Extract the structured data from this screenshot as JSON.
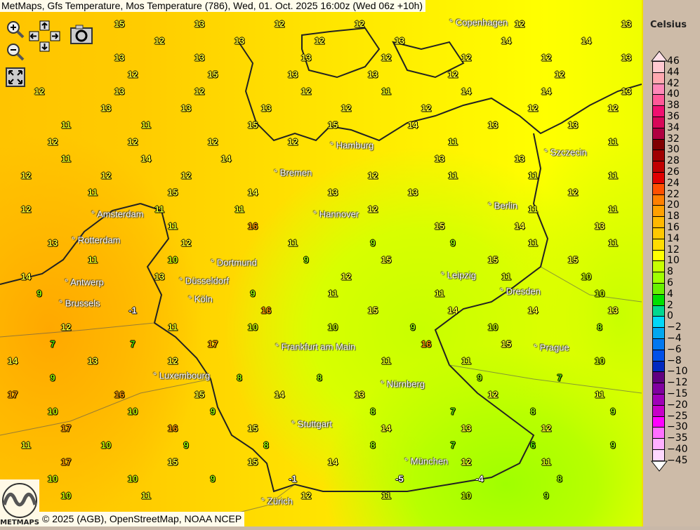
{
  "title": "MetMaps, Gfs Temperature, Mos Temperature (786), Wed, 01. Oct. 2025 16:00z (Wed 06z +10h)",
  "controls": {
    "zoom_in": "zoom-in-icon",
    "zoom_out": "zoom-out-icon",
    "pan": "pan-arrows-icon",
    "snapshot": "camera-icon",
    "fullscreen": "fullscreen-icon"
  },
  "legend": {
    "title": "Celsius",
    "labels": [
      "46",
      "44",
      "42",
      "40",
      "38",
      "36",
      "34",
      "32",
      "30",
      "28",
      "26",
      "24",
      "22",
      "20",
      "18",
      "16",
      "14",
      "12",
      "10",
      "8",
      "6",
      "4",
      "2",
      "0",
      "−2",
      "−4",
      "−6",
      "−8",
      "−10",
      "−12",
      "−15",
      "−20",
      "−25",
      "−30",
      "−35",
      "−40",
      "−45"
    ],
    "colors": [
      "#ffc8d0",
      "#ffa8b0",
      "#ff88b8",
      "#ff5898",
      "#f01070",
      "#d80858",
      "#b00040",
      "#800000",
      "#a00000",
      "#c00000",
      "#e00000",
      "#ff5000",
      "#ff8000",
      "#ffa000",
      "#ffb800",
      "#ffc800",
      "#ffdc00",
      "#ffff00",
      "#c8ff00",
      "#a0ff00",
      "#68f000",
      "#00e000",
      "#00d890",
      "#00d8f8",
      "#00a8f0",
      "#0078f0",
      "#0050e8",
      "#0028c0",
      "#600080",
      "#8000a0",
      "#a000b8",
      "#c800c8",
      "#ff00ff",
      "#ff70ff",
      "#ffb0ff",
      "#ffd8ff"
    ]
  },
  "cities": [
    "Copenhagen",
    "Hamburg",
    "Bremen",
    "Szczecin",
    "Amsterdam",
    "Rotterdam",
    "Berlin",
    "Hannover",
    "Dortmund",
    "Düsseldorf",
    "Köln",
    "Antwerp",
    "Brussels",
    "Leipzig",
    "Dresden",
    "Prague",
    "Frankfurt am Main",
    "Luxembourg",
    "Nürnberg",
    "Stuttgart",
    "München",
    "Zürich"
  ],
  "stations": [
    15,
    13,
    12,
    12,
    12,
    13,
    12,
    13,
    12,
    13,
    14,
    14,
    13,
    13,
    13,
    12,
    12,
    12,
    13,
    12,
    15,
    13,
    13,
    12,
    12,
    12,
    13,
    12,
    12,
    11,
    14,
    14,
    13,
    13,
    13,
    13,
    12,
    12,
    12,
    12,
    11,
    11,
    15,
    15,
    14,
    13,
    13,
    12,
    12,
    12,
    12,
    11,
    11,
    11,
    14,
    14,
    13,
    13,
    12,
    12,
    12,
    12,
    11,
    11,
    11,
    11,
    15,
    14,
    13,
    13,
    12,
    12,
    11,
    11,
    12,
    11,
    11,
    11,
    16,
    15,
    14,
    13,
    13,
    12,
    11,
    9,
    9,
    11,
    11,
    11,
    10,
    9,
    15,
    15,
    15,
    14,
    13,
    12,
    11,
    10,
    9,
    9,
    11,
    11,
    10,
    -1,
    16,
    15,
    14,
    14,
    13,
    12,
    11,
    10,
    10,
    9,
    10,
    8,
    7,
    7,
    17,
    16,
    15,
    14,
    13,
    12,
    11,
    11,
    10,
    9,
    8,
    8,
    9,
    7,
    17,
    16,
    15,
    14,
    13,
    12,
    11,
    10,
    10,
    9,
    8,
    7,
    8,
    9,
    17,
    16,
    15,
    14,
    13,
    12,
    11,
    10,
    9,
    8,
    8,
    7,
    6,
    9,
    17,
    15,
    15,
    14,
    12,
    11,
    10,
    10,
    9,
    -1,
    -5,
    -4,
    8,
    10,
    11,
    12,
    11,
    10,
    9
  ],
  "copyright": "© 2025 (AGB), OpenStreetMap, NOAA NCEP",
  "logo_text": "METMAPS"
}
